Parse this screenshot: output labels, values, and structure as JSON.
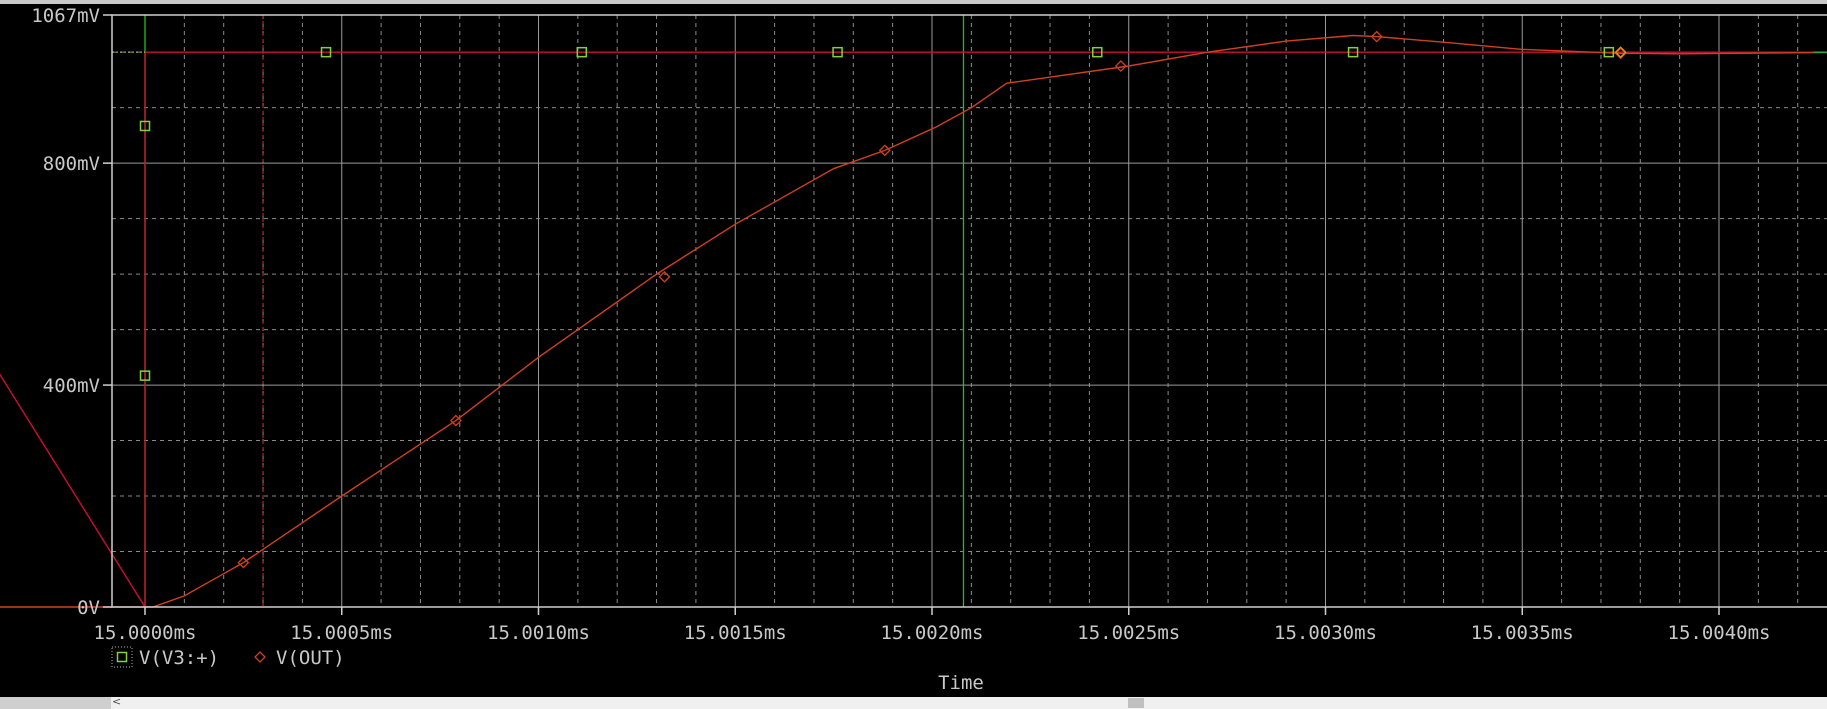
{
  "chart_data": {
    "type": "line",
    "x_unit": "ms",
    "xlim": [
      15.0,
      15.00437
    ],
    "ylim": [
      0,
      1.067
    ],
    "x_ticks": [
      15.0,
      15.0005,
      15.001,
      15.0015,
      15.002,
      15.0025,
      15.003,
      15.0035,
      15.004
    ],
    "x_tick_labels": [
      "15.0000ms",
      "15.0005ms",
      "15.0010ms",
      "15.0015ms",
      "15.0020ms",
      "15.0025ms",
      "15.0030ms",
      "15.0035ms",
      "15.0040ms"
    ],
    "y_ticks": [
      0,
      0.4,
      0.8,
      1.067
    ],
    "y_tick_labels": [
      "0V",
      "400mV",
      "800mV",
      "1067mV"
    ],
    "xlabel": "Time",
    "ylabel": "",
    "grid": true,
    "legend_position": "bottom-left",
    "series": [
      {
        "name": "V(V3:+)",
        "marker": "square",
        "color": "#7fd33a",
        "line_color": "#c8102e",
        "x": [
          14.99912,
          15.0,
          15.0,
          15.00437
        ],
        "y": [
          1.0,
          0.0,
          1.0,
          1.0
        ],
        "markers_x": [
          15.0,
          15.0,
          15.00046,
          15.00111,
          15.00176,
          15.00242,
          15.00307,
          15.00372
        ],
        "markers_y": [
          0.867,
          0.417,
          1.0,
          1.0,
          1.0,
          1.0,
          1.0,
          1.0
        ]
      },
      {
        "name": "V(OUT)",
        "marker": "diamond",
        "color": "#d04020",
        "line_color": "#d04020",
        "x": [
          14.99912,
          15.0,
          15.00002,
          15.0001,
          15.0002,
          15.00025,
          15.0005,
          15.00079,
          15.001,
          15.0013,
          15.0015,
          15.00175,
          15.00188,
          15.00201,
          15.0021,
          15.00219,
          15.0025,
          15.0027,
          15.0029,
          15.00307,
          15.00313,
          15.0033,
          15.0035,
          15.00375,
          15.0039,
          15.00437
        ],
        "y": [
          0.0,
          0.0,
          0.0,
          0.02,
          0.06,
          0.08,
          0.2,
          0.336,
          0.45,
          0.6,
          0.69,
          0.79,
          0.823,
          0.865,
          0.9,
          0.944,
          0.975,
          1.0,
          1.02,
          1.03,
          1.028,
          1.018,
          1.005,
          0.998,
          0.997,
          1.0
        ],
        "markers_x": [
          15.00025,
          15.00079,
          15.00132,
          15.00188,
          15.00248,
          15.00313,
          15.00375
        ],
        "markers_y": [
          0.08,
          0.336,
          0.595,
          0.823,
          0.975,
          1.028,
          0.998
        ]
      }
    ],
    "cursors": [
      {
        "x": 15.0,
        "color": "#22c022"
      },
      {
        "x": 15.0003,
        "color": "#b02020"
      },
      {
        "x": 15.00208,
        "color": "#22c022"
      }
    ],
    "colors": {
      "background": "#000000",
      "grid_major": "#9a9a9a",
      "grid_minor": "#8a8a8a",
      "axis_text": "#c8c8c8"
    }
  }
}
